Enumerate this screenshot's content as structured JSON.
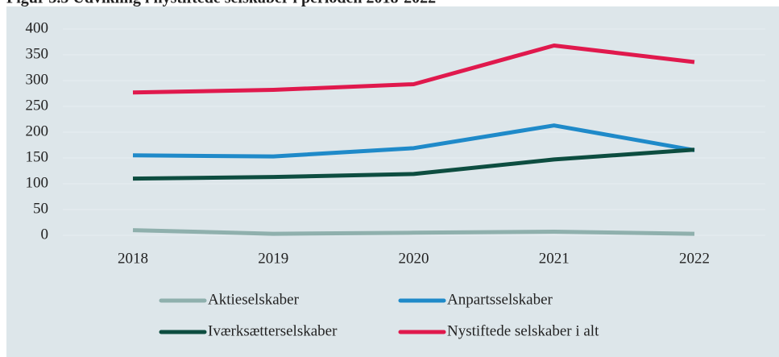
{
  "chart_data": {
    "type": "line",
    "title": "Figur 3.5 Udvikling i nystiftede selskaber i perioden 2018-2022",
    "categories": [
      "2018",
      "2019",
      "2020",
      "2021",
      "2022"
    ],
    "series": [
      {
        "name": "Aktieselskaber",
        "color": "#8fb0ad",
        "values": [
          10,
          3,
          5,
          7,
          3
        ]
      },
      {
        "name": "Anpartsselskaber",
        "color": "#1f8ac9",
        "values": [
          155,
          153,
          169,
          213,
          165
        ]
      },
      {
        "name": "Iværksætterselskaber",
        "color": "#0d4d40",
        "values": [
          110,
          113,
          119,
          147,
          166
        ]
      },
      {
        "name": "Nystiftede selskaber i alt",
        "color": "#e0194d",
        "values": [
          277,
          282,
          293,
          368,
          336
        ]
      }
    ],
    "ylim": [
      0,
      400
    ],
    "yticks": [
      0,
      50,
      100,
      150,
      200,
      250,
      300,
      350,
      400
    ],
    "grid": true,
    "legend": "bottom"
  }
}
